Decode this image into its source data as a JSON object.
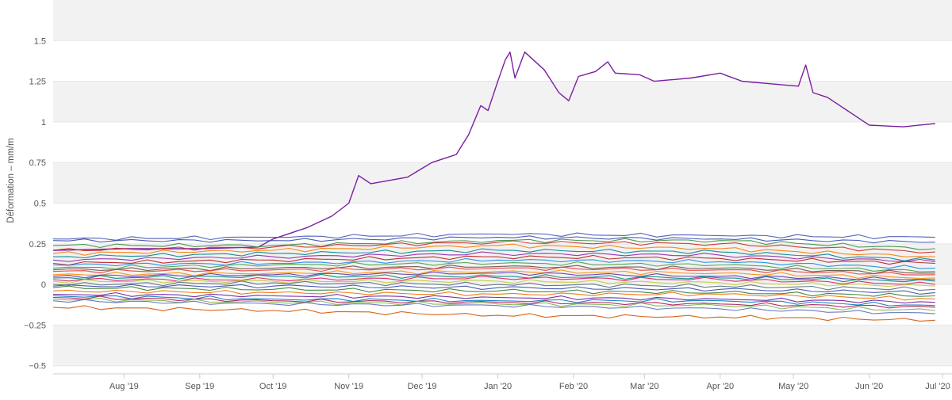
{
  "chart_data": {
    "type": "line",
    "title": "",
    "xlabel": "",
    "ylabel": "Déformation – mm/m",
    "x_range": [
      "2019-07-03",
      "2020-06-30"
    ],
    "ylim": [
      -0.55,
      1.75
    ],
    "y_ticks": [
      {
        "value": 1.5,
        "label": "1.5"
      },
      {
        "value": 1.25,
        "label": "1.25"
      },
      {
        "value": 1,
        "label": "1"
      },
      {
        "value": 0.75,
        "label": "0.75"
      },
      {
        "value": 0.5,
        "label": "0.5"
      },
      {
        "value": 0.25,
        "label": "0.25"
      },
      {
        "value": 0,
        "label": "0"
      },
      {
        "value": -0.25,
        "label": "−0.25"
      },
      {
        "value": -0.5,
        "label": "−0.5"
      }
    ],
    "x_ticks": [
      {
        "date": "2019-08-01",
        "label": "Aug '19"
      },
      {
        "date": "2019-09-01",
        "label": "Sep '19"
      },
      {
        "date": "2019-10-01",
        "label": "Oct '19"
      },
      {
        "date": "2019-11-01",
        "label": "Nov '19"
      },
      {
        "date": "2019-12-01",
        "label": "Dec '19"
      },
      {
        "date": "2020-01-01",
        "label": "Jan '20"
      },
      {
        "date": "2020-02-01",
        "label": "Feb '20"
      },
      {
        "date": "2020-03-01",
        "label": "Mar '20"
      },
      {
        "date": "2020-04-01",
        "label": "Apr '20"
      },
      {
        "date": "2020-05-01",
        "label": "May '20"
      },
      {
        "date": "2020-06-01",
        "label": "Jun '20"
      },
      {
        "date": "2020-07-01",
        "label": "Jul '20"
      }
    ],
    "grid": true,
    "alternate_band_color": "#f2f2f2",
    "legend": "none",
    "series": [
      {
        "color": "#7b1fa2",
        "points": [
          [
            "2019-07-03",
            0.21
          ],
          [
            "2019-08-01",
            0.22
          ],
          [
            "2019-09-01",
            0.22
          ],
          [
            "2019-09-25",
            0.23
          ],
          [
            "2019-10-01",
            0.28
          ],
          [
            "2019-10-15",
            0.35
          ],
          [
            "2019-10-25",
            0.42
          ],
          [
            "2019-11-01",
            0.5
          ],
          [
            "2019-11-05",
            0.67
          ],
          [
            "2019-11-10",
            0.62
          ],
          [
            "2019-11-25",
            0.66
          ],
          [
            "2019-12-05",
            0.75
          ],
          [
            "2019-12-15",
            0.8
          ],
          [
            "2019-12-20",
            0.92
          ],
          [
            "2019-12-25",
            1.1
          ],
          [
            "2019-12-28",
            1.07
          ],
          [
            "2020-01-01",
            1.25
          ],
          [
            "2020-01-04",
            1.38
          ],
          [
            "2020-01-06",
            1.43
          ],
          [
            "2020-01-08",
            1.27
          ],
          [
            "2020-01-12",
            1.43
          ],
          [
            "2020-01-20",
            1.32
          ],
          [
            "2020-01-26",
            1.18
          ],
          [
            "2020-01-30",
            1.13
          ],
          [
            "2020-02-03",
            1.28
          ],
          [
            "2020-02-10",
            1.31
          ],
          [
            "2020-02-15",
            1.37
          ],
          [
            "2020-02-18",
            1.3
          ],
          [
            "2020-02-28",
            1.29
          ],
          [
            "2020-03-05",
            1.25
          ],
          [
            "2020-03-20",
            1.27
          ],
          [
            "2020-04-01",
            1.3
          ],
          [
            "2020-04-10",
            1.25
          ],
          [
            "2020-04-25",
            1.23
          ],
          [
            "2020-05-03",
            1.22
          ],
          [
            "2020-05-06",
            1.35
          ],
          [
            "2020-05-09",
            1.18
          ],
          [
            "2020-05-15",
            1.15
          ],
          [
            "2020-05-22",
            1.08
          ],
          [
            "2020-06-01",
            0.98
          ],
          [
            "2020-06-15",
            0.97
          ],
          [
            "2020-06-28",
            0.99
          ]
        ]
      },
      {
        "color": "#3f51b5",
        "points": [
          [
            "2019-07-03",
            0.28
          ],
          [
            "2019-10-01",
            0.29
          ],
          [
            "2020-01-01",
            0.31
          ],
          [
            "2020-04-01",
            0.3
          ],
          [
            "2020-06-28",
            0.29
          ]
        ]
      },
      {
        "color": "#3949ab",
        "points": [
          [
            "2019-07-03",
            0.27
          ],
          [
            "2019-10-01",
            0.27
          ],
          [
            "2020-01-01",
            0.29
          ],
          [
            "2020-04-01",
            0.28
          ],
          [
            "2020-06-28",
            0.26
          ]
        ]
      },
      {
        "color": "#388e3c",
        "points": [
          [
            "2019-07-03",
            0.24
          ],
          [
            "2019-10-01",
            0.24
          ],
          [
            "2020-01-01",
            0.27
          ],
          [
            "2020-04-01",
            0.27
          ],
          [
            "2020-06-28",
            0.22
          ]
        ]
      },
      {
        "color": "#c62828",
        "points": [
          [
            "2019-07-03",
            0.21
          ],
          [
            "2019-10-01",
            0.23
          ],
          [
            "2020-01-01",
            0.26
          ],
          [
            "2020-04-01",
            0.25
          ],
          [
            "2020-06-28",
            0.2
          ]
        ]
      },
      {
        "color": "#f57c00",
        "points": [
          [
            "2019-07-03",
            0.19
          ],
          [
            "2019-10-01",
            0.21
          ],
          [
            "2020-01-01",
            0.24
          ],
          [
            "2020-04-01",
            0.22
          ],
          [
            "2020-06-28",
            0.17
          ]
        ]
      },
      {
        "color": "#00838f",
        "points": [
          [
            "2019-07-03",
            0.17
          ],
          [
            "2019-10-01",
            0.19
          ],
          [
            "2020-01-01",
            0.21
          ],
          [
            "2020-04-01",
            0.2
          ],
          [
            "2020-06-28",
            0.15
          ]
        ]
      },
      {
        "color": "#8e24aa",
        "points": [
          [
            "2019-07-03",
            0.15
          ],
          [
            "2019-10-01",
            0.17
          ],
          [
            "2020-01-01",
            0.19
          ],
          [
            "2020-04-01",
            0.18
          ],
          [
            "2020-06-28",
            0.14
          ]
        ]
      },
      {
        "color": "#b71c1c",
        "points": [
          [
            "2019-07-03",
            0.13
          ],
          [
            "2019-10-01",
            0.15
          ],
          [
            "2020-01-01",
            0.17
          ],
          [
            "2020-04-01",
            0.16
          ],
          [
            "2020-06-28",
            0.13
          ]
        ]
      },
      {
        "color": "#1e88e5",
        "points": [
          [
            "2019-07-03",
            0.12
          ],
          [
            "2019-10-01",
            0.13
          ],
          [
            "2020-01-01",
            0.15
          ],
          [
            "2020-04-01",
            0.14
          ],
          [
            "2020-06-28",
            0.1
          ]
        ]
      },
      {
        "color": "#43a047",
        "points": [
          [
            "2019-07-03",
            0.1
          ],
          [
            "2019-10-01",
            0.12
          ],
          [
            "2020-01-01",
            0.13
          ],
          [
            "2020-04-01",
            0.12
          ],
          [
            "2020-06-28",
            0.08
          ]
        ]
      },
      {
        "color": "#6d4c41",
        "points": [
          [
            "2019-07-03",
            0.09
          ],
          [
            "2019-10-01",
            0.1
          ],
          [
            "2020-01-01",
            0.11
          ],
          [
            "2020-04-01",
            0.1
          ],
          [
            "2020-06-28",
            0.07
          ]
        ]
      },
      {
        "color": "#e53935",
        "points": [
          [
            "2019-07-03",
            0.08
          ],
          [
            "2019-10-01",
            0.09
          ],
          [
            "2020-01-01",
            0.1
          ],
          [
            "2020-04-01",
            0.09
          ],
          [
            "2020-06-28",
            0.06
          ]
        ]
      },
      {
        "color": "#fb8c00",
        "points": [
          [
            "2019-07-03",
            0.06
          ],
          [
            "2019-10-01",
            0.07
          ],
          [
            "2020-01-01",
            0.08
          ],
          [
            "2020-04-01",
            0.07
          ],
          [
            "2020-06-28",
            0.04
          ]
        ]
      },
      {
        "color": "#5e35b1",
        "points": [
          [
            "2019-07-03",
            0.05
          ],
          [
            "2019-10-01",
            0.06
          ],
          [
            "2020-01-01",
            0.07
          ],
          [
            "2020-04-01",
            0.05
          ],
          [
            "2020-06-28",
            0.03
          ]
        ]
      },
      {
        "color": "#00897b",
        "points": [
          [
            "2019-07-03",
            0.04
          ],
          [
            "2019-10-01",
            0.05
          ],
          [
            "2020-01-01",
            0.05
          ],
          [
            "2020-04-01",
            0.04
          ],
          [
            "2020-06-28",
            0.02
          ]
        ]
      },
      {
        "color": "#d81b60",
        "points": [
          [
            "2019-07-03",
            0.03
          ],
          [
            "2019-10-01",
            0.03
          ],
          [
            "2020-01-01",
            0.04
          ],
          [
            "2020-04-01",
            0.03
          ],
          [
            "2020-06-28",
            0.0
          ]
        ]
      },
      {
        "color": "#c0ca33",
        "points": [
          [
            "2019-07-03",
            0.02
          ],
          [
            "2019-10-01",
            0.02
          ],
          [
            "2020-01-01",
            0.02
          ],
          [
            "2020-04-01",
            0.01
          ],
          [
            "2020-06-28",
            -0.01
          ]
        ]
      },
      {
        "color": "#546e7a",
        "points": [
          [
            "2019-07-03",
            0.0
          ],
          [
            "2019-10-01",
            0.01
          ],
          [
            "2020-01-01",
            0.0
          ],
          [
            "2020-04-01",
            -0.01
          ],
          [
            "2020-06-28",
            -0.03
          ]
        ]
      },
      {
        "color": "#3949ab",
        "points": [
          [
            "2019-07-03",
            -0.01
          ],
          [
            "2019-10-01",
            -0.01
          ],
          [
            "2020-01-01",
            -0.02
          ],
          [
            "2020-04-01",
            -0.03
          ],
          [
            "2020-06-28",
            -0.05
          ]
        ]
      },
      {
        "color": "#2e7d32",
        "points": [
          [
            "2019-07-03",
            -0.02
          ],
          [
            "2019-10-01",
            -0.03
          ],
          [
            "2020-01-01",
            -0.04
          ],
          [
            "2020-04-01",
            -0.05
          ],
          [
            "2020-06-28",
            -0.07
          ]
        ]
      },
      {
        "color": "#ef6c00",
        "points": [
          [
            "2019-07-03",
            -0.04
          ],
          [
            "2019-10-01",
            -0.05
          ],
          [
            "2020-01-01",
            -0.06
          ],
          [
            "2020-04-01",
            -0.06
          ],
          [
            "2020-06-28",
            -0.09
          ]
        ]
      },
      {
        "color": "#6a1b9a",
        "points": [
          [
            "2019-07-03",
            -0.06
          ],
          [
            "2019-10-01",
            -0.07
          ],
          [
            "2020-01-01",
            -0.08
          ],
          [
            "2020-04-01",
            -0.09
          ],
          [
            "2020-06-28",
            -0.11
          ]
        ]
      },
      {
        "color": "#0277bd",
        "points": [
          [
            "2019-07-03",
            -0.07
          ],
          [
            "2019-10-01",
            -0.09
          ],
          [
            "2020-01-01",
            -0.1
          ],
          [
            "2020-04-01",
            -0.1
          ],
          [
            "2020-06-28",
            -0.13
          ]
        ]
      },
      {
        "color": "#ad1457",
        "points": [
          [
            "2019-07-03",
            -0.08
          ],
          [
            "2019-10-01",
            -0.1
          ],
          [
            "2020-01-01",
            -0.11
          ],
          [
            "2020-04-01",
            -0.12
          ],
          [
            "2020-06-28",
            -0.14
          ]
        ]
      },
      {
        "color": "#7cb342",
        "points": [
          [
            "2019-07-03",
            -0.09
          ],
          [
            "2019-10-01",
            -0.11
          ],
          [
            "2020-01-01",
            -0.12
          ],
          [
            "2020-04-01",
            -0.13
          ],
          [
            "2020-06-28",
            -0.16
          ]
        ]
      },
      {
        "color": "#5c6bc0",
        "points": [
          [
            "2019-07-03",
            -0.1
          ],
          [
            "2019-10-01",
            -0.12
          ],
          [
            "2020-01-01",
            -0.13
          ],
          [
            "2020-04-01",
            -0.15
          ],
          [
            "2020-06-28",
            -0.18
          ]
        ]
      },
      {
        "color": "#d35400",
        "points": [
          [
            "2019-07-03",
            -0.14
          ],
          [
            "2019-10-01",
            -0.16
          ],
          [
            "2020-01-01",
            -0.19
          ],
          [
            "2020-04-01",
            -0.2
          ],
          [
            "2020-06-28",
            -0.22
          ]
        ]
      }
    ]
  }
}
